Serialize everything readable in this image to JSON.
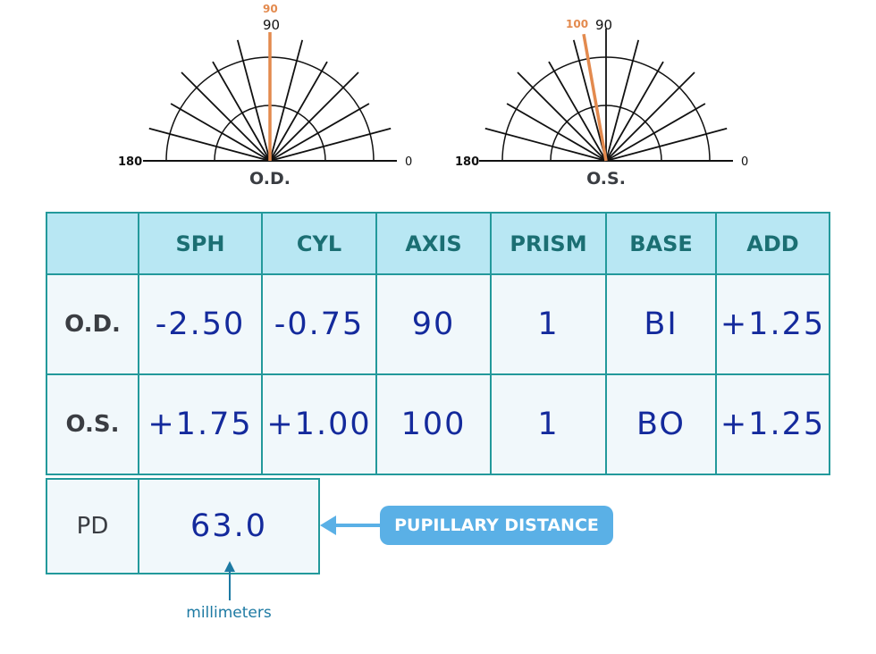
{
  "dials": [
    {
      "eye_label": "O.D.",
      "left_label": "180",
      "right_label": "0",
      "top_label": "90",
      "axis_label": "90",
      "axis_degrees": 90
    },
    {
      "eye_label": "O.S.",
      "left_label": "180",
      "right_label": "0",
      "top_label": "90",
      "axis_label": "100",
      "axis_degrees": 100
    }
  ],
  "colors": {
    "axis_highlight": "#e38a4e",
    "table_border": "#23999b",
    "header_bg": "#b8e7f3",
    "handwriting": "#142a9c",
    "callout_bg": "#5ab0e6"
  },
  "table": {
    "headers": [
      "",
      "SPH",
      "CYL",
      "AXIS",
      "PRISM",
      "BASE",
      "ADD"
    ],
    "rows": [
      {
        "label": "O.D.",
        "cells": [
          "-2.50",
          "-0.75",
          "90",
          "1",
          "BI",
          "+1.25"
        ]
      },
      {
        "label": "O.S.",
        "cells": [
          "+1.75",
          "+1.00",
          "100",
          "1",
          "BO",
          "+1.25"
        ]
      }
    ]
  },
  "pd": {
    "label": "PD",
    "value": "63.0",
    "callout": "PUPILLARY DISTANCE",
    "unit_note": "millimeters"
  }
}
